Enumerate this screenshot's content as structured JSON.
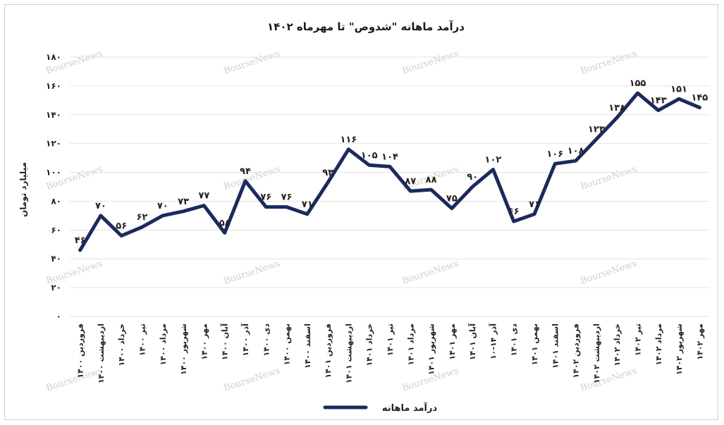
{
  "chart_data": {
    "type": "line",
    "title": "درآمد ماهانه \"شدوص\" تا مهرماه ۱۴۰۲",
    "ylabel": "میلیارد تومان",
    "xlabel": "",
    "ylim": [
      0,
      180
    ],
    "yticks": [
      "۰",
      "۲۰",
      "۴۰",
      "۶۰",
      "۸۰",
      "۱۰۰",
      "۱۲۰",
      "۱۴۰",
      "۱۶۰",
      "۱۸۰"
    ],
    "ytick_values": [
      0,
      20,
      40,
      60,
      80,
      100,
      120,
      140,
      160,
      180
    ],
    "grid": true,
    "legend_position": "bottom",
    "categories": [
      "فروردین ۱۴۰۰",
      "اردیبهشت ۱۴۰۰",
      "خرداد ۱۴۰۰",
      "تیر ۱۴۰۰",
      "مرداد ۱۴۰۰",
      "شهریور ۱۴۰۰",
      "مهر ۱۴۰۰",
      "آبان ۱۴۰۰",
      "آذر ۱۴۰۰",
      "دی ۱۴۰۰",
      "بهمن ۱۴۰۰",
      "اسفند ۱۴۰۰",
      "فروردین ۱۴۰۱",
      "اردیبهشت ۱۴۰۱",
      "خرداد ۱۴۰۱",
      "تیر ۱۴۰۱",
      "مرداد ۱۴۰۱",
      "شهریور ۱۴۰۱",
      "مهر ۱۴۰۱",
      "آبان ۱۴۰۱",
      "آذر ۱۴-۱۰",
      "دی ۱۴۰۱",
      "بهمن ۱۴۰۱",
      "اسفند ۱۴۰۱",
      "فروردین ۱۴۰۲",
      "اردیبهشت ۱۴۰۲",
      "خرداد ۱۴۰۲",
      "تیر ۱۴۰۲",
      "مرداد ۱۴۰۲",
      "شهریور ۱۴۰۲",
      "مهر ۱۴۰۲"
    ],
    "series": [
      {
        "name": "درآمد ماهانه",
        "color": "#1b2a5e",
        "values": [
          46,
          70,
          56,
          62,
          70,
          73,
          77,
          58,
          94,
          76,
          76,
          71,
          93,
          116,
          105,
          104,
          87,
          88,
          75,
          90,
          102,
          66,
          71,
          106,
          108,
          123,
          138,
          155,
          143,
          151,
          145
        ],
        "labels": [
          "۴۶",
          "۷۰",
          "۵۶",
          "۶۲",
          "۷۰",
          "۷۳",
          "۷۷",
          "۵۸",
          "۹۴",
          "۷۶",
          "۷۶",
          "۷۱",
          "۹۳",
          "۱۱۶",
          "۱۰۵",
          "۱۰۴",
          "۸۷",
          "۸۸",
          "۷۵",
          "۹۰",
          "۱۰۲",
          "۶۶",
          "۷۱",
          "۱۰۶",
          "۱۰۸",
          "۱۲۳",
          "۱۳۸",
          "۱۵۵",
          "۱۴۳",
          "۱۵۱",
          "۱۴۵"
        ]
      }
    ]
  },
  "watermark": "BourseNews"
}
